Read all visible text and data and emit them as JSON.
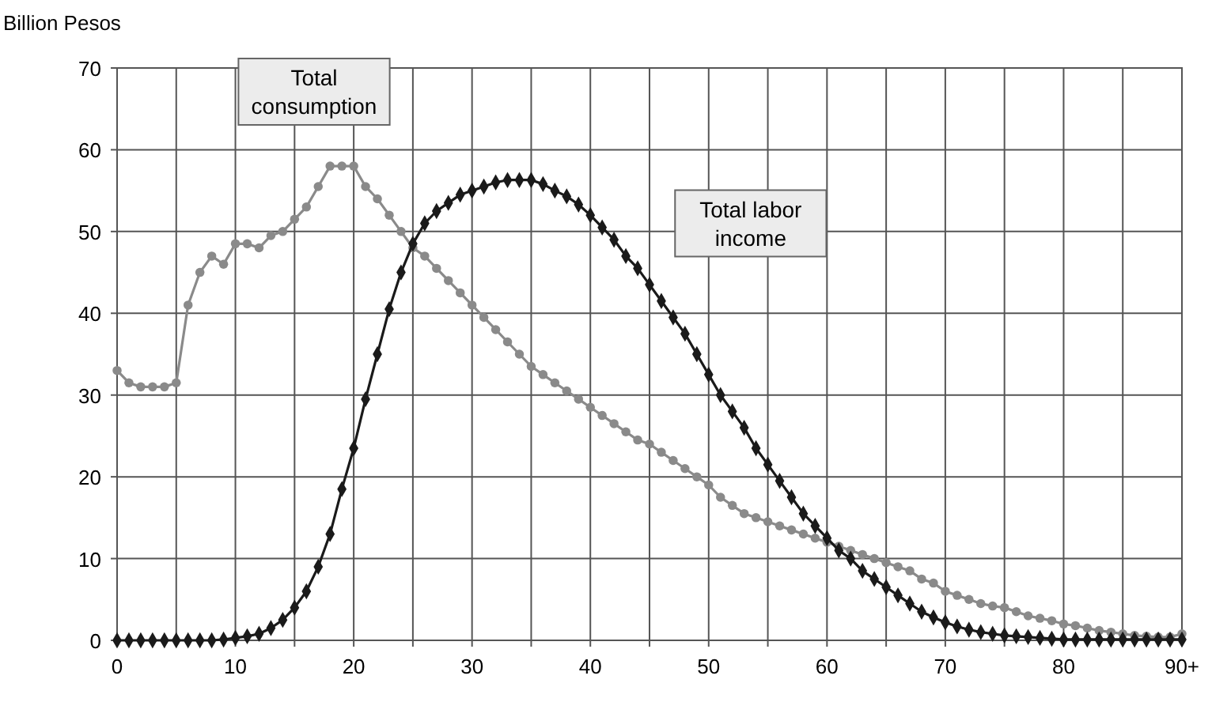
{
  "chart_data": {
    "type": "line",
    "ylabel": "Billion Pesos",
    "x": [
      0,
      1,
      2,
      3,
      4,
      5,
      6,
      7,
      8,
      9,
      10,
      11,
      12,
      13,
      14,
      15,
      16,
      17,
      18,
      19,
      20,
      21,
      22,
      23,
      24,
      25,
      26,
      27,
      28,
      29,
      30,
      31,
      32,
      33,
      34,
      35,
      36,
      37,
      38,
      39,
      40,
      41,
      42,
      43,
      44,
      45,
      46,
      47,
      48,
      49,
      50,
      51,
      52,
      53,
      54,
      55,
      56,
      57,
      58,
      59,
      60,
      61,
      62,
      63,
      64,
      65,
      66,
      67,
      68,
      69,
      70,
      71,
      72,
      73,
      74,
      75,
      76,
      77,
      78,
      79,
      80,
      81,
      82,
      83,
      84,
      85,
      86,
      87,
      88,
      89,
      90
    ],
    "series": [
      {
        "name": "Total consumption",
        "color": "#8a8a8a",
        "marker": "circle",
        "values": [
          33,
          31.5,
          31,
          31,
          31,
          31.5,
          41,
          45,
          47,
          46,
          48.5,
          48.5,
          48,
          49.5,
          50,
          51.5,
          53,
          55.5,
          58,
          58,
          58,
          55.5,
          54,
          52,
          50,
          48,
          47,
          45.5,
          44,
          42.5,
          41,
          39.5,
          38,
          36.5,
          35,
          33.5,
          32.5,
          31.5,
          30.5,
          29.5,
          28.5,
          27.5,
          26.5,
          25.5,
          24.5,
          24,
          23,
          22,
          21,
          20,
          19,
          17.5,
          16.5,
          15.5,
          15,
          14.5,
          14,
          13.5,
          13,
          12.5,
          12,
          11.5,
          11,
          10.5,
          10,
          9.5,
          9,
          8.5,
          7.5,
          7,
          6,
          5.5,
          5,
          4.5,
          4.2,
          4,
          3.5,
          3,
          2.7,
          2.4,
          2,
          1.8,
          1.5,
          1.2,
          1,
          0.8,
          0.6,
          0.5,
          0.4,
          0.4,
          0.8
        ]
      },
      {
        "name": "Total labor income",
        "color": "#1a1a1a",
        "marker": "diamond",
        "values": [
          0,
          0,
          0,
          0,
          0,
          0,
          0,
          0,
          0,
          0.1,
          0.3,
          0.5,
          0.8,
          1.5,
          2.5,
          4,
          6,
          9,
          13,
          18.5,
          23.5,
          29.5,
          35,
          40.5,
          45,
          48.5,
          51,
          52.5,
          53.5,
          54.5,
          55,
          55.5,
          56,
          56.3,
          56.3,
          56.3,
          55.8,
          55,
          54.3,
          53.3,
          52,
          50.5,
          49,
          47,
          45.5,
          43.5,
          41.5,
          39.5,
          37.5,
          35,
          32.5,
          30,
          28,
          26,
          23.5,
          21.5,
          19.5,
          17.5,
          15.5,
          14,
          12.5,
          11,
          10,
          8.5,
          7.5,
          6.5,
          5.5,
          4.5,
          3.5,
          2.8,
          2.2,
          1.7,
          1.3,
          1,
          0.8,
          0.6,
          0.5,
          0.4,
          0.3,
          0.2,
          0.1,
          0.1,
          0.1,
          0.1,
          0.1,
          0.1,
          0.1,
          0.1,
          0.1,
          0.1,
          0.1
        ]
      }
    ],
    "xlim": [
      0,
      90
    ],
    "ylim": [
      0,
      70
    ],
    "xticks": [
      0,
      {
        "value": 5,
        "label": null
      },
      10,
      {
        "value": 15,
        "label": null
      },
      20,
      {
        "value": 25,
        "label": null
      },
      30,
      {
        "value": 35,
        "label": null
      },
      40,
      {
        "value": 45,
        "label": null
      },
      50,
      {
        "value": 55,
        "label": null
      },
      60,
      {
        "value": 65,
        "label": null
      },
      70,
      {
        "value": 75,
        "label": null
      },
      80,
      {
        "value": 85,
        "label": null
      },
      {
        "value": 90,
        "label": "90+"
      }
    ],
    "yticks": [
      0,
      10,
      20,
      30,
      40,
      50,
      60,
      70
    ],
    "grid": true
  }
}
